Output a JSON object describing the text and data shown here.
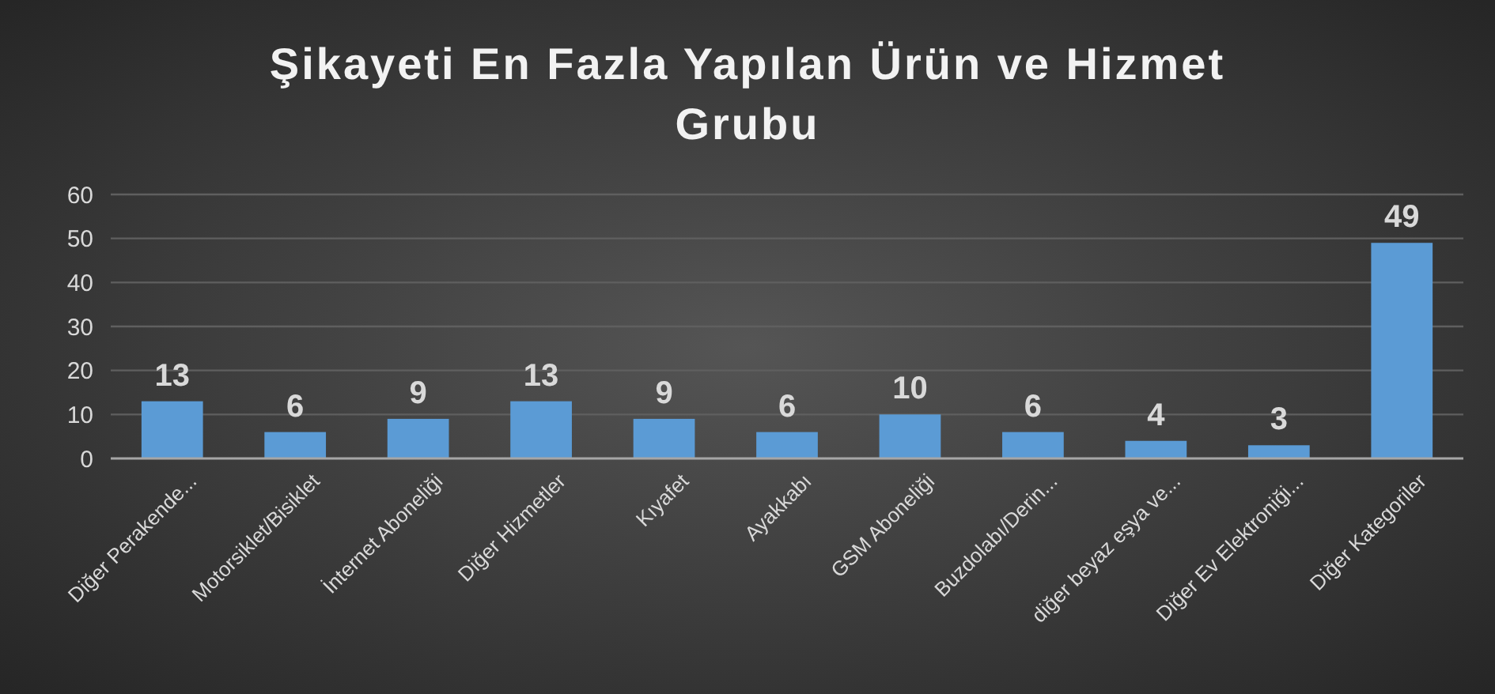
{
  "chart_data": {
    "type": "bar",
    "title": "Şikayeti En Fazla Yapılan Ürün ve Hizmet Grubu",
    "categories": [
      "Diğer Perakende...",
      "Motorsiklet/Bisiklet",
      "İnternet Aboneliği",
      "Diğer Hizmetler",
      "Kıyafet",
      "Ayakkabı",
      "GSM Aboneliği",
      "Buzdolabı/Derin...",
      "diğer beyaz eşya ve...",
      "Diğer Ev Elektroniği...",
      "Diğer Kategoriler"
    ],
    "values": [
      13,
      6,
      9,
      13,
      9,
      6,
      10,
      6,
      4,
      3,
      49
    ],
    "color": "#5b9bd5",
    "ylim": [
      0,
      60
    ],
    "yticks": [
      0,
      10,
      20,
      30,
      40,
      50,
      60
    ],
    "grid": "y",
    "data_labels": true
  }
}
